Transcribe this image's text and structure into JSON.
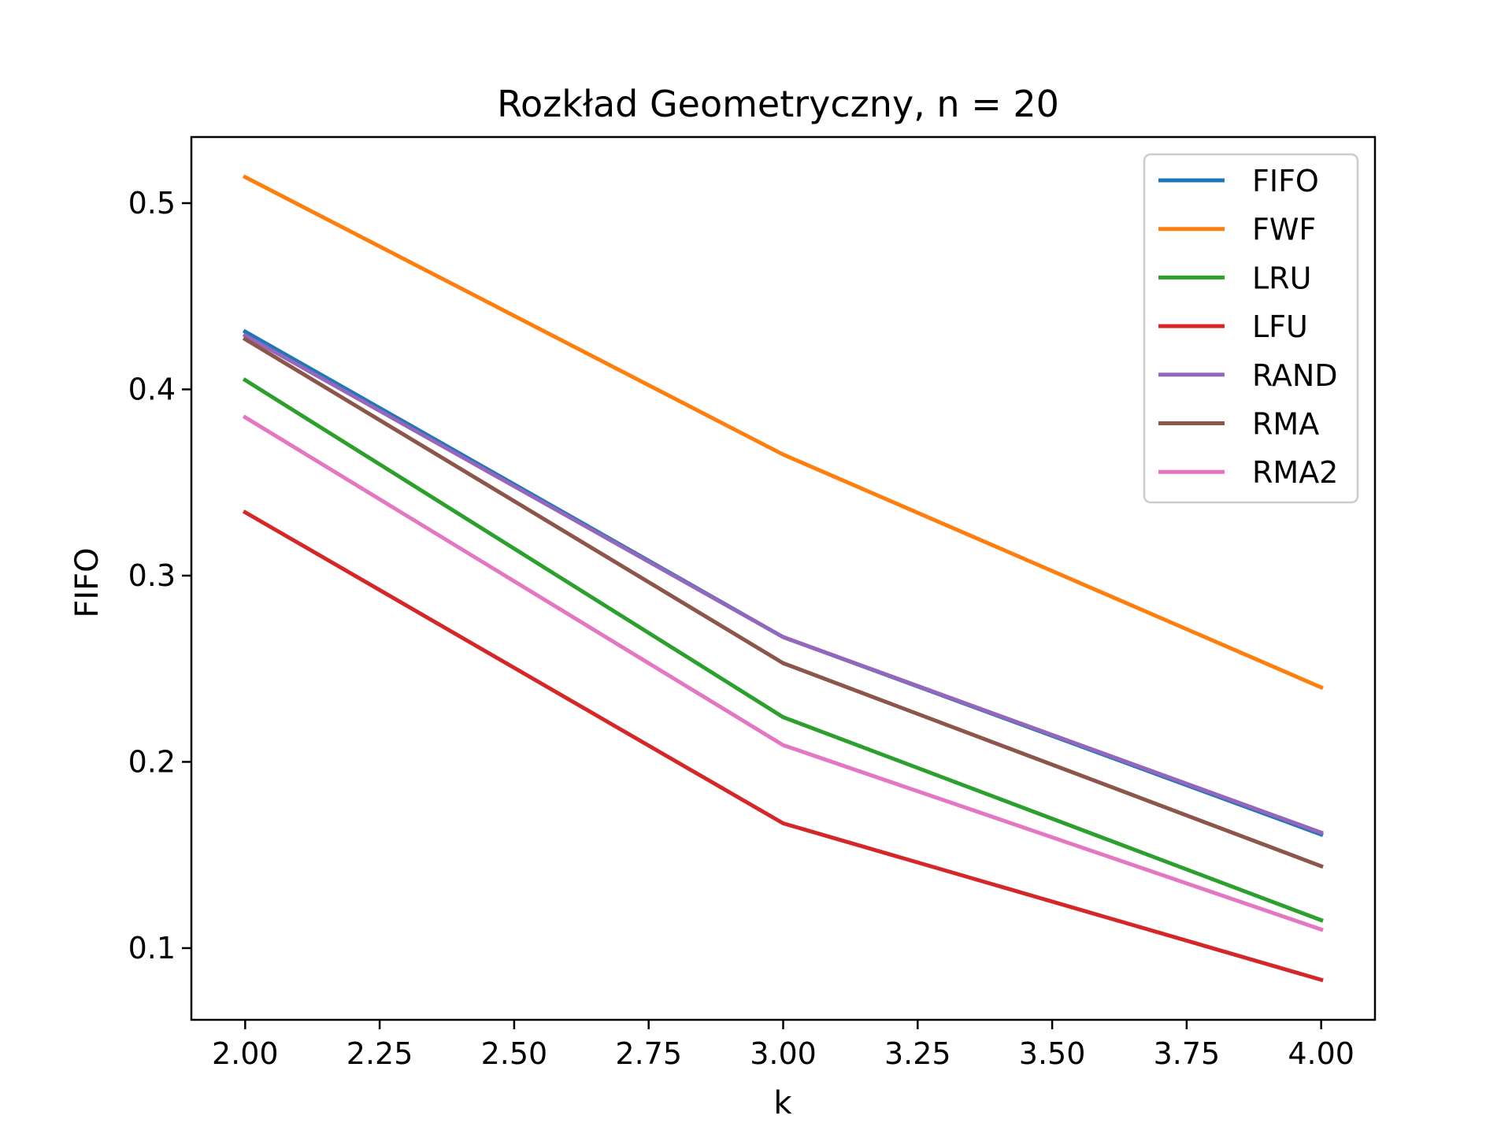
{
  "chart_data": {
    "type": "line",
    "title": "Rozkład Geometryczny, n = 20",
    "xlabel": "k",
    "ylabel": "FIFO",
    "x": [
      2,
      3,
      4
    ],
    "xlim": [
      1.9,
      4.1
    ],
    "ylim": [
      0.0615,
      0.5355
    ],
    "xticks": [
      "2.00",
      "2.25",
      "2.50",
      "2.75",
      "3.00",
      "3.25",
      "3.50",
      "3.75",
      "4.00"
    ],
    "yticks": [
      "0.1",
      "0.2",
      "0.3",
      "0.4",
      "0.5"
    ],
    "grid": false,
    "legend_position": "top-right",
    "series": [
      {
        "name": "FIFO",
        "color": "#1f77b4",
        "values": [
          0.431,
          0.267,
          0.161
        ]
      },
      {
        "name": "FWF",
        "color": "#ff7f0e",
        "values": [
          0.514,
          0.365,
          0.24
        ]
      },
      {
        "name": "LRU",
        "color": "#2ca02c",
        "values": [
          0.405,
          0.224,
          0.115
        ]
      },
      {
        "name": "LFU",
        "color": "#d62728",
        "values": [
          0.334,
          0.167,
          0.083
        ]
      },
      {
        "name": "RAND",
        "color": "#9467bd",
        "values": [
          0.429,
          0.267,
          0.162
        ]
      },
      {
        "name": "RMA",
        "color": "#8c564b",
        "values": [
          0.427,
          0.253,
          0.144
        ]
      },
      {
        "name": "RMA2",
        "color": "#e377c2",
        "values": [
          0.385,
          0.209,
          0.11
        ]
      }
    ]
  }
}
